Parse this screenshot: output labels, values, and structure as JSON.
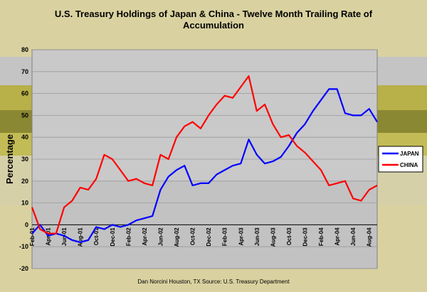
{
  "chart_data": {
    "type": "line",
    "title_line1": "U.S. Treasury Holdings of Japan & China  - Twelve Month Trailing Rate of",
    "title_line2": "Accumulation",
    "ylabel": "Percentage",
    "xlabel": "",
    "ylim": [
      -20,
      80
    ],
    "yticks": [
      "80",
      "70",
      "60",
      "50",
      "40",
      "30",
      "20",
      "10",
      "0",
      "-10",
      "-20"
    ],
    "x": [
      "Feb-01",
      "Mar-01",
      "Apr-01",
      "May-01",
      "Jun-01",
      "Jul-01",
      "Aug-01",
      "Sep-01",
      "Oct-01",
      "Nov-01",
      "Dec-01",
      "Jan-02",
      "Feb-02",
      "Mar-02",
      "Apr-02",
      "May-02",
      "Jun-02",
      "Jul-02",
      "Aug-02",
      "Sep-02",
      "Oct-02",
      "Nov-02",
      "Dec-02",
      "Jan-03",
      "Feb-03",
      "Mar-03",
      "Apr-03",
      "May-03",
      "Jun-03",
      "Jul-03",
      "Aug-03",
      "Sep-03",
      "Oct-03",
      "Nov-03",
      "Dec-03",
      "Jan-04",
      "Feb-04",
      "Mar-04",
      "Apr-04",
      "May-04",
      "Jun-04",
      "Jul-04",
      "Aug-04",
      "Sep-04"
    ],
    "xtick_labels": [
      "Feb-01",
      "Apr-01",
      "Jun-01",
      "Aug-01",
      "Oct-01",
      "Dec-01",
      "Feb-02",
      "Apr-02",
      "Jun-02",
      "Aug-02",
      "Oct-02",
      "Dec-02",
      "Feb-03",
      "Apr-03",
      "Jun-03",
      "Aug-03",
      "Oct-03",
      "Dec-03",
      "Feb-04",
      "Apr-04",
      "Jun-04",
      "Aug-04"
    ],
    "series": [
      {
        "name": "JAPAN",
        "color": "#0000ff",
        "values": [
          -4,
          0,
          -5,
          -4,
          -5,
          -7,
          -8,
          -7,
          -1,
          -2,
          0,
          -1,
          0,
          2,
          3,
          4,
          16,
          22,
          25,
          27,
          18,
          19,
          19,
          23,
          25,
          27,
          28,
          39,
          32,
          28,
          29,
          31,
          36,
          42,
          46,
          52,
          57,
          62,
          62,
          51,
          50,
          50,
          53,
          47
        ]
      },
      {
        "name": "CHINA",
        "color": "#ff0000",
        "values": [
          8,
          -2,
          -4,
          -4,
          8,
          11,
          17,
          16,
          21,
          32,
          30,
          25,
          20,
          21,
          19,
          18,
          32,
          30,
          40,
          45,
          47,
          44,
          50,
          55,
          59,
          58,
          63,
          68,
          52,
          55,
          46,
          40,
          41,
          36,
          33,
          29,
          25,
          18,
          19,
          20,
          12,
          11,
          16,
          18
        ]
      }
    ],
    "legend_position": "right"
  },
  "footer": "Dan Norcini  Houston, TX    Source: U.S. Treasury Department",
  "colors": {
    "background": "#d9d2a0",
    "plot_area": "#c8c8c8",
    "band_dark": "#a8a8a8",
    "band_olive": "#b8b048",
    "band_olive_dark": "#7c7a2c",
    "plot_white": "#ffffff"
  }
}
